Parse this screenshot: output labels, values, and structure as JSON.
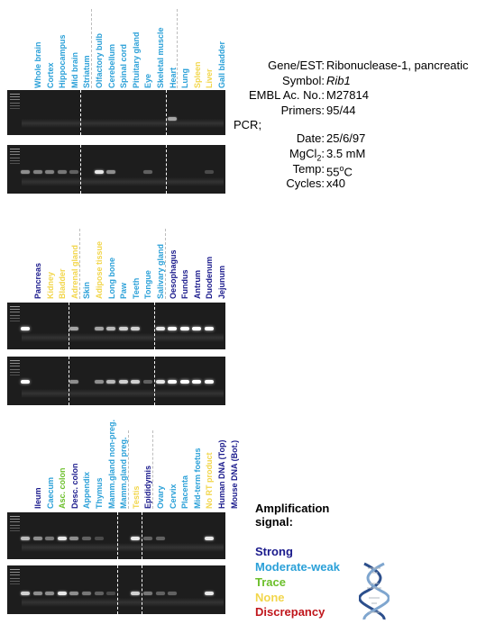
{
  "colors": {
    "strong": "#1a1a8c",
    "moderate": "#2aa0d8",
    "trace": "#6bbf2a",
    "none": "#f2d64b",
    "discrepancy": "#c0161c"
  },
  "panel1": {
    "lanes": [
      {
        "label": "Whole brain",
        "signal": "moderate"
      },
      {
        "label": "Cortex",
        "signal": "moderate"
      },
      {
        "label": "Hippocampus",
        "signal": "moderate"
      },
      {
        "label": "Mid brain",
        "signal": "moderate"
      },
      {
        "label": "Striatum",
        "signal": "moderate"
      },
      {
        "label": "Olfactory bulb",
        "signal": "moderate"
      },
      {
        "label": "Cerebellum",
        "signal": "moderate"
      },
      {
        "label": "Spinal cord",
        "signal": "moderate"
      },
      {
        "label": "Pituitary gland",
        "signal": "moderate"
      },
      {
        "label": "Eye",
        "signal": "moderate"
      },
      {
        "label": "Skeletal muscle",
        "signal": "moderate"
      },
      {
        "label": "Heart",
        "signal": "moderate"
      },
      {
        "label": "Lung",
        "signal": "moderate"
      },
      {
        "label": "Spleen",
        "signal": "none"
      },
      {
        "label": "Liver",
        "signal": "none"
      },
      {
        "label": "Gall bladder",
        "signal": "moderate"
      }
    ]
  },
  "panel2": {
    "lanes": [
      {
        "label": "Pancreas",
        "signal": "strong"
      },
      {
        "label": "Kidney",
        "signal": "none"
      },
      {
        "label": "Bladder",
        "signal": "none"
      },
      {
        "label": "Adrenal gland",
        "signal": "none"
      },
      {
        "label": "Skin",
        "signal": "moderate"
      },
      {
        "label": "Adipose tissue",
        "signal": "none"
      },
      {
        "label": "Long bone",
        "signal": "moderate"
      },
      {
        "label": "Paw",
        "signal": "moderate"
      },
      {
        "label": "Teeth",
        "signal": "moderate"
      },
      {
        "label": "Tongue",
        "signal": "moderate"
      },
      {
        "label": "Salivary gland",
        "signal": "moderate"
      },
      {
        "label": "Oesophagus",
        "signal": "strong"
      },
      {
        "label": "Fundus",
        "signal": "strong"
      },
      {
        "label": "Antrum",
        "signal": "strong"
      },
      {
        "label": "Duodenum",
        "signal": "strong"
      },
      {
        "label": "Jejunum",
        "signal": "strong"
      }
    ]
  },
  "panel3": {
    "lanes": [
      {
        "label": "Ileum",
        "signal": "strong"
      },
      {
        "label": "Caecum",
        "signal": "moderate"
      },
      {
        "label": "Asc. colon",
        "signal": "trace"
      },
      {
        "label": "Desc. colon",
        "signal": "strong"
      },
      {
        "label": "Appendix",
        "signal": "moderate"
      },
      {
        "label": "Thymus",
        "signal": "moderate"
      },
      {
        "label": "Mamm.gland non-preg.",
        "signal": "moderate"
      },
      {
        "label": "Mamm.gland preg.",
        "signal": "moderate"
      },
      {
        "label": "Testis",
        "signal": "none"
      },
      {
        "label": "Epididymis",
        "signal": "strong"
      },
      {
        "label": "Ovary",
        "signal": "moderate"
      },
      {
        "label": "Cervix",
        "signal": "moderate"
      },
      {
        "label": "Placenta",
        "signal": "moderate"
      },
      {
        "label": "Mid-term foetus",
        "signal": "moderate"
      },
      {
        "label": "No RT product",
        "signal": "none"
      },
      {
        "label": "Human DNA (Top)",
        "signal": "strong"
      },
      {
        "label": "Mouse DNA (Bot.)",
        "signal": "strong"
      }
    ]
  },
  "info": {
    "gene_key": "Gene/EST:",
    "gene_val": "Ribonuclease-1, pancreatic",
    "symbol_key": "Symbol:",
    "symbol_val": "Rib1",
    "embl_key": "EMBL Ac. No.:",
    "embl_val": "M27814",
    "primers_key": "Primers:",
    "primers_val": "95/44",
    "pcr_key": "PCR;",
    "date_key": "Date:",
    "date_val": "25/6/97",
    "mgcl_key_a": "MgCl",
    "mgcl_key_sub": "2",
    "mgcl_key_b": ":",
    "mgcl_val": "3.5 mM",
    "temp_key": "Temp:",
    "temp_val_a": "55",
    "temp_val_sup": "o",
    "temp_val_b": "C",
    "cycles_key": "Cycles:",
    "cycles_val": "x40"
  },
  "legend": {
    "title_line1": "Amplification",
    "title_line2": "signal:",
    "strong": "Strong",
    "moderate": "Moderate-weak",
    "trace": "Trace",
    "none": "None",
    "discrepancy": "Discrepancy"
  },
  "bands": {
    "panel1_top": [
      0,
      0,
      0,
      0,
      0,
      0,
      0,
      0,
      0,
      0,
      0,
      0,
      0.6,
      0,
      0,
      0
    ],
    "panel1_bot": [
      0.5,
      0.45,
      0.45,
      0.4,
      0.3,
      0,
      0.9,
      0.5,
      0,
      0,
      0.3,
      0,
      0,
      0,
      0,
      0.2
    ],
    "panel2_top": [
      1,
      0,
      0,
      0,
      0.6,
      0,
      0.6,
      0.7,
      0.8,
      0.8,
      0,
      0.9,
      1,
      1,
      1,
      1
    ],
    "panel2_bot": [
      1,
      0,
      0,
      0,
      0.5,
      0,
      0.5,
      0.7,
      0.8,
      0.8,
      0.3,
      0.9,
      1,
      1,
      1,
      1
    ],
    "panel3_top": [
      0.7,
      0.5,
      0.4,
      0.9,
      0.5,
      0.3,
      0.2,
      0,
      0,
      0.9,
      0.3,
      0.3,
      0,
      0,
      0,
      0.9,
      0
    ],
    "panel3_bot": [
      0.8,
      0.5,
      0.5,
      0.9,
      0.5,
      0.4,
      0.3,
      0.2,
      0,
      0.8,
      0.4,
      0.3,
      0.3,
      0,
      0,
      0.9,
      0
    ]
  }
}
